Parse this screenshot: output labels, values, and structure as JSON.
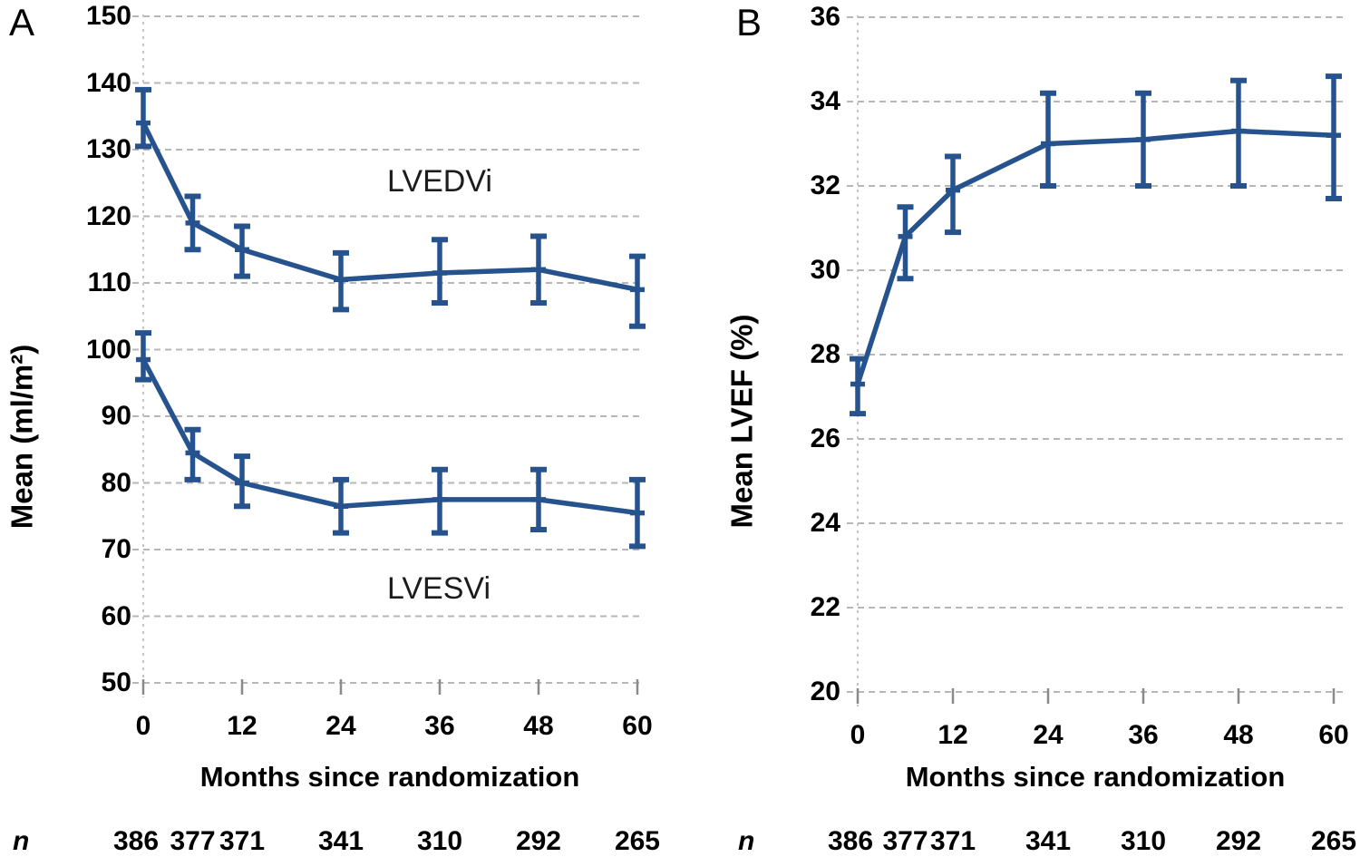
{
  "figure": {
    "background": "#ffffff",
    "line_color": "#26538d",
    "grid_color": "#b7b7b7",
    "text_color": "#000000",
    "panels": [
      {
        "label": "A",
        "n_label": "n"
      },
      {
        "label": "B",
        "n_label": "n"
      }
    ]
  },
  "chart_data": [
    {
      "type": "line",
      "panel": "A",
      "title": "",
      "xlabel": "Months since randomization",
      "ylabel": "Mean (ml/m²)",
      "x_months": [
        0,
        6,
        12,
        24,
        36,
        48,
        60
      ],
      "xticks": [
        0,
        12,
        24,
        36,
        48,
        60
      ],
      "ylim": [
        50,
        150
      ],
      "yticks": [
        150,
        140,
        130,
        120,
        110,
        100,
        90,
        80,
        70,
        60,
        50
      ],
      "grid": "dashed-horizontal",
      "series": [
        {
          "name": "LVEDVi",
          "mean": [
            134.0,
            119.0,
            115.0,
            110.5,
            111.5,
            112.0,
            109.0
          ],
          "upper": [
            139.0,
            123.0,
            118.5,
            114.5,
            116.5,
            117.0,
            114.0
          ],
          "lower": [
            130.5,
            115.0,
            111.0,
            106.0,
            107.0,
            107.0,
            103.5
          ]
        },
        {
          "name": "LVESVi",
          "mean": [
            98.5,
            84.5,
            80.0,
            76.5,
            77.5,
            77.5,
            75.5
          ],
          "upper": [
            102.5,
            88.0,
            84.0,
            80.5,
            82.0,
            82.0,
            80.5
          ],
          "lower": [
            95.5,
            80.5,
            76.5,
            72.5,
            72.5,
            73.0,
            70.5
          ]
        }
      ],
      "n_at_risk": [
        386,
        377,
        371,
        341,
        310,
        292,
        265
      ]
    },
    {
      "type": "line",
      "panel": "B",
      "title": "",
      "xlabel": "Months since randomization",
      "ylabel": "Mean LVEF (%)",
      "x_months": [
        0,
        6,
        12,
        24,
        36,
        48,
        60
      ],
      "xticks": [
        0,
        12,
        24,
        36,
        48,
        60
      ],
      "ylim": [
        20,
        36
      ],
      "yticks": [
        36,
        34,
        32,
        30,
        28,
        26,
        24,
        22,
        20
      ],
      "grid": "dashed-horizontal",
      "series": [
        {
          "name": "LVEF",
          "mean": [
            27.3,
            30.8,
            31.9,
            33.0,
            33.1,
            33.3,
            33.2
          ],
          "upper": [
            27.9,
            31.5,
            32.7,
            34.2,
            34.2,
            34.5,
            34.6
          ],
          "lower": [
            26.6,
            29.8,
            30.9,
            32.0,
            32.0,
            32.0,
            31.7
          ]
        }
      ],
      "n_at_risk": [
        386,
        377,
        371,
        341,
        310,
        292,
        265
      ]
    }
  ]
}
